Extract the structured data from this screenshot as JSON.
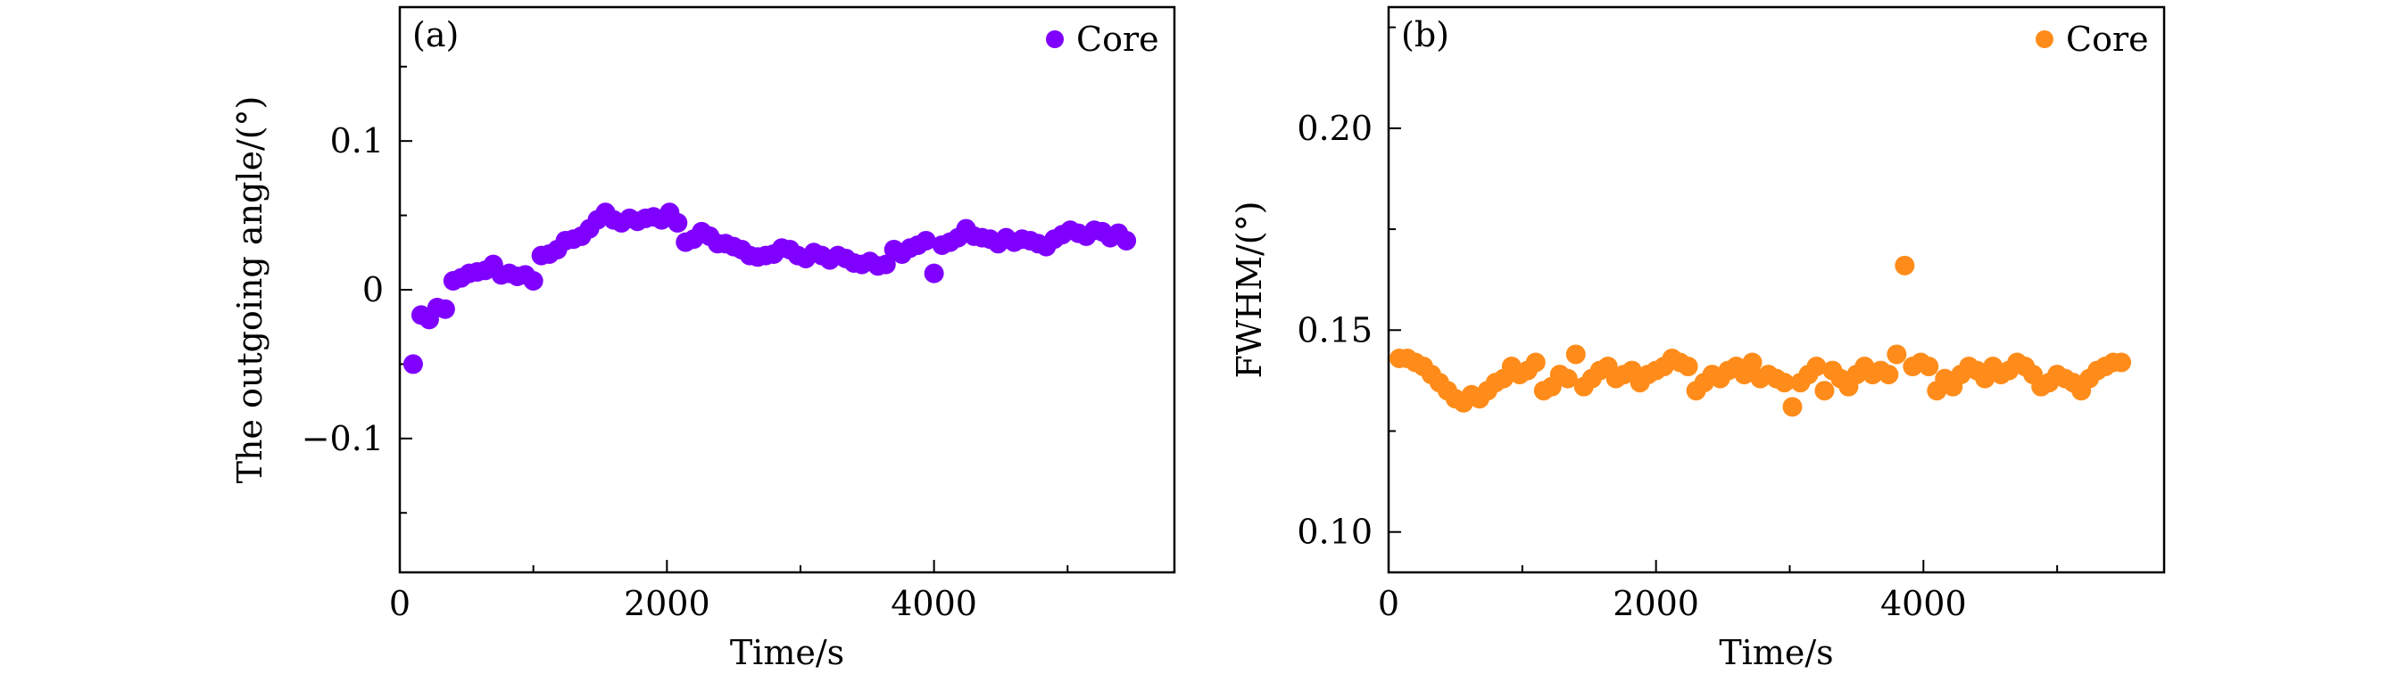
{
  "chart_data": [
    {
      "type": "scatter",
      "panel_tag": "(a)",
      "xlabel": "Time/s",
      "ylabel": "The outgoing angle/(°)",
      "xlim": [
        0,
        5800
      ],
      "ylim": [
        -0.19,
        0.19
      ],
      "xticks": [
        0,
        2000,
        4000
      ],
      "xtick_labels": [
        "0",
        "2000",
        "4000"
      ],
      "yticks": [
        -0.1,
        0,
        0.1
      ],
      "ytick_labels": [
        "−0.1",
        "0",
        "0.1"
      ],
      "legend": "Core",
      "legend_position": "top-right",
      "color": "#7f00ff",
      "series": [
        {
          "name": "Core",
          "x": [
            100,
            160,
            220,
            280,
            340,
            400,
            460,
            520,
            580,
            640,
            700,
            760,
            820,
            880,
            940,
            1000,
            1060,
            1120,
            1180,
            1240,
            1300,
            1360,
            1420,
            1480,
            1540,
            1600,
            1660,
            1720,
            1780,
            1840,
            1900,
            1960,
            2020,
            2080,
            2140,
            2200,
            2260,
            2320,
            2380,
            2440,
            2500,
            2560,
            2620,
            2680,
            2740,
            2800,
            2860,
            2920,
            2980,
            3040,
            3100,
            3160,
            3220,
            3280,
            3340,
            3400,
            3460,
            3520,
            3580,
            3640,
            3700,
            3760,
            3820,
            3880,
            3940,
            4000,
            4060,
            4120,
            4180,
            4240,
            4300,
            4360,
            4420,
            4480,
            4540,
            4600,
            4660,
            4720,
            4780,
            4840,
            4900,
            4960,
            5020,
            5080,
            5140,
            5200,
            5260,
            5320,
            5380,
            5440
          ],
          "y": [
            -0.05,
            -0.017,
            -0.02,
            -0.012,
            -0.013,
            0.006,
            0.008,
            0.011,
            0.012,
            0.013,
            0.017,
            0.01,
            0.011,
            0.009,
            0.01,
            0.006,
            0.023,
            0.024,
            0.027,
            0.033,
            0.034,
            0.036,
            0.041,
            0.047,
            0.052,
            0.047,
            0.045,
            0.048,
            0.046,
            0.048,
            0.049,
            0.047,
            0.052,
            0.045,
            0.032,
            0.034,
            0.039,
            0.036,
            0.031,
            0.031,
            0.029,
            0.027,
            0.023,
            0.022,
            0.023,
            0.024,
            0.028,
            0.027,
            0.023,
            0.021,
            0.025,
            0.023,
            0.02,
            0.023,
            0.021,
            0.018,
            0.017,
            0.019,
            0.016,
            0.017,
            0.027,
            0.024,
            0.028,
            0.03,
            0.033,
            0.011,
            0.03,
            0.032,
            0.035,
            0.041,
            0.036,
            0.035,
            0.034,
            0.031,
            0.035,
            0.032,
            0.034,
            0.033,
            0.031,
            0.029,
            0.034,
            0.037,
            0.04,
            0.038,
            0.036,
            0.04,
            0.039,
            0.035,
            0.038,
            0.033
          ]
        }
      ]
    },
    {
      "type": "scatter",
      "panel_tag": "(b)",
      "xlabel": "Time/s",
      "ylabel": "FWHM/(°)",
      "xlim": [
        0,
        5800
      ],
      "ylim": [
        0.09,
        0.23
      ],
      "xticks": [
        0,
        2000,
        4000
      ],
      "xtick_labels": [
        "0",
        "2000",
        "4000"
      ],
      "yticks": [
        0.1,
        0.15,
        0.2
      ],
      "ytick_labels": [
        "0.10",
        "0.15",
        "0.20"
      ],
      "legend": "Core",
      "legend_position": "top-right",
      "color": "#ff8c1a",
      "series": [
        {
          "name": "Core",
          "x": [
            80,
            140,
            200,
            260,
            320,
            380,
            440,
            500,
            560,
            620,
            680,
            740,
            800,
            860,
            920,
            980,
            1040,
            1100,
            1160,
            1220,
            1280,
            1340,
            1400,
            1460,
            1520,
            1580,
            1640,
            1700,
            1760,
            1820,
            1880,
            1940,
            2000,
            2060,
            2120,
            2180,
            2240,
            2300,
            2360,
            2420,
            2480,
            2540,
            2600,
            2660,
            2720,
            2780,
            2840,
            2900,
            2960,
            3020,
            3080,
            3140,
            3200,
            3260,
            3320,
            3380,
            3440,
            3500,
            3560,
            3620,
            3680,
            3740,
            3800,
            3860,
            3920,
            3980,
            4040,
            4100,
            4160,
            4220,
            4280,
            4340,
            4400,
            4460,
            4520,
            4580,
            4640,
            4700,
            4760,
            4820,
            4880,
            4940,
            5000,
            5060,
            5120,
            5180,
            5240,
            5300,
            5360,
            5420,
            5480
          ],
          "y": [
            0.143,
            0.143,
            0.142,
            0.141,
            0.139,
            0.137,
            0.135,
            0.133,
            0.132,
            0.134,
            0.133,
            0.135,
            0.137,
            0.138,
            0.141,
            0.139,
            0.14,
            0.142,
            0.135,
            0.136,
            0.139,
            0.138,
            0.144,
            0.136,
            0.138,
            0.14,
            0.141,
            0.138,
            0.139,
            0.14,
            0.137,
            0.139,
            0.14,
            0.141,
            0.143,
            0.142,
            0.141,
            0.135,
            0.137,
            0.139,
            0.138,
            0.14,
            0.141,
            0.139,
            0.142,
            0.138,
            0.139,
            0.138,
            0.137,
            0.131,
            0.137,
            0.139,
            0.141,
            0.135,
            0.14,
            0.138,
            0.136,
            0.139,
            0.141,
            0.139,
            0.14,
            0.139,
            0.144,
            0.166,
            0.141,
            0.142,
            0.141,
            0.135,
            0.138,
            0.136,
            0.139,
            0.141,
            0.14,
            0.138,
            0.141,
            0.139,
            0.14,
            0.142,
            0.141,
            0.139,
            0.136,
            0.137,
            0.139,
            0.138,
            0.137,
            0.135,
            0.138,
            0.14,
            0.141,
            0.142,
            0.142
          ]
        }
      ]
    }
  ]
}
